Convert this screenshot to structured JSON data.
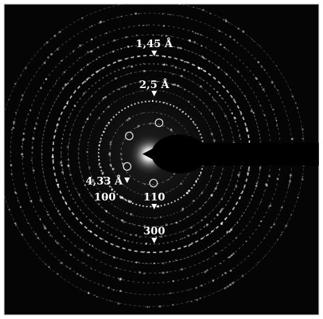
{
  "labels": {
    "d_1_45": "1,45 Å",
    "d_2_5": "2,5 Å",
    "d_4_33": "4,33 Å",
    "hkl_100": "100",
    "hkl_110": "110",
    "hkl_300": "300"
  },
  "colors": {
    "background": "#050505",
    "ring": "#d9d9d9",
    "text": "#ffffff",
    "frame": "#bfbfbf"
  },
  "icons": {
    "marker": "down-triangle-icon",
    "spot": "circle-outline-icon",
    "stopper": "beam-stopper"
  }
}
